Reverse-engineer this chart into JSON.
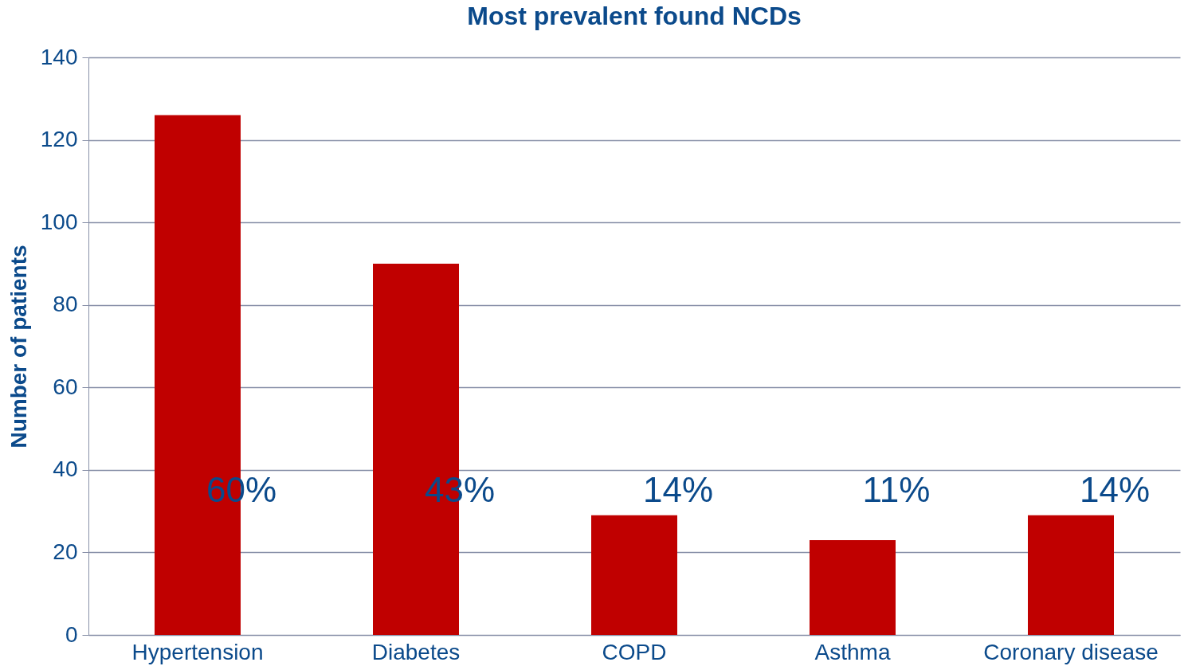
{
  "chart_data": {
    "type": "bar",
    "title": "Most prevalent found NCDs",
    "ylabel": "Number of patients",
    "categories": [
      "Hypertension",
      "Diabetes",
      "COPD",
      "Asthma",
      "Coronary disease"
    ],
    "values": [
      126,
      90,
      29,
      23,
      29
    ],
    "color": "#c00000",
    "annotations": [
      "60%",
      "43%",
      "14%",
      "11%",
      "14%"
    ],
    "ylim": [
      0,
      140
    ],
    "yticks": [
      0,
      20,
      40,
      60,
      80,
      100,
      120,
      140
    ],
    "grid": "y"
  }
}
